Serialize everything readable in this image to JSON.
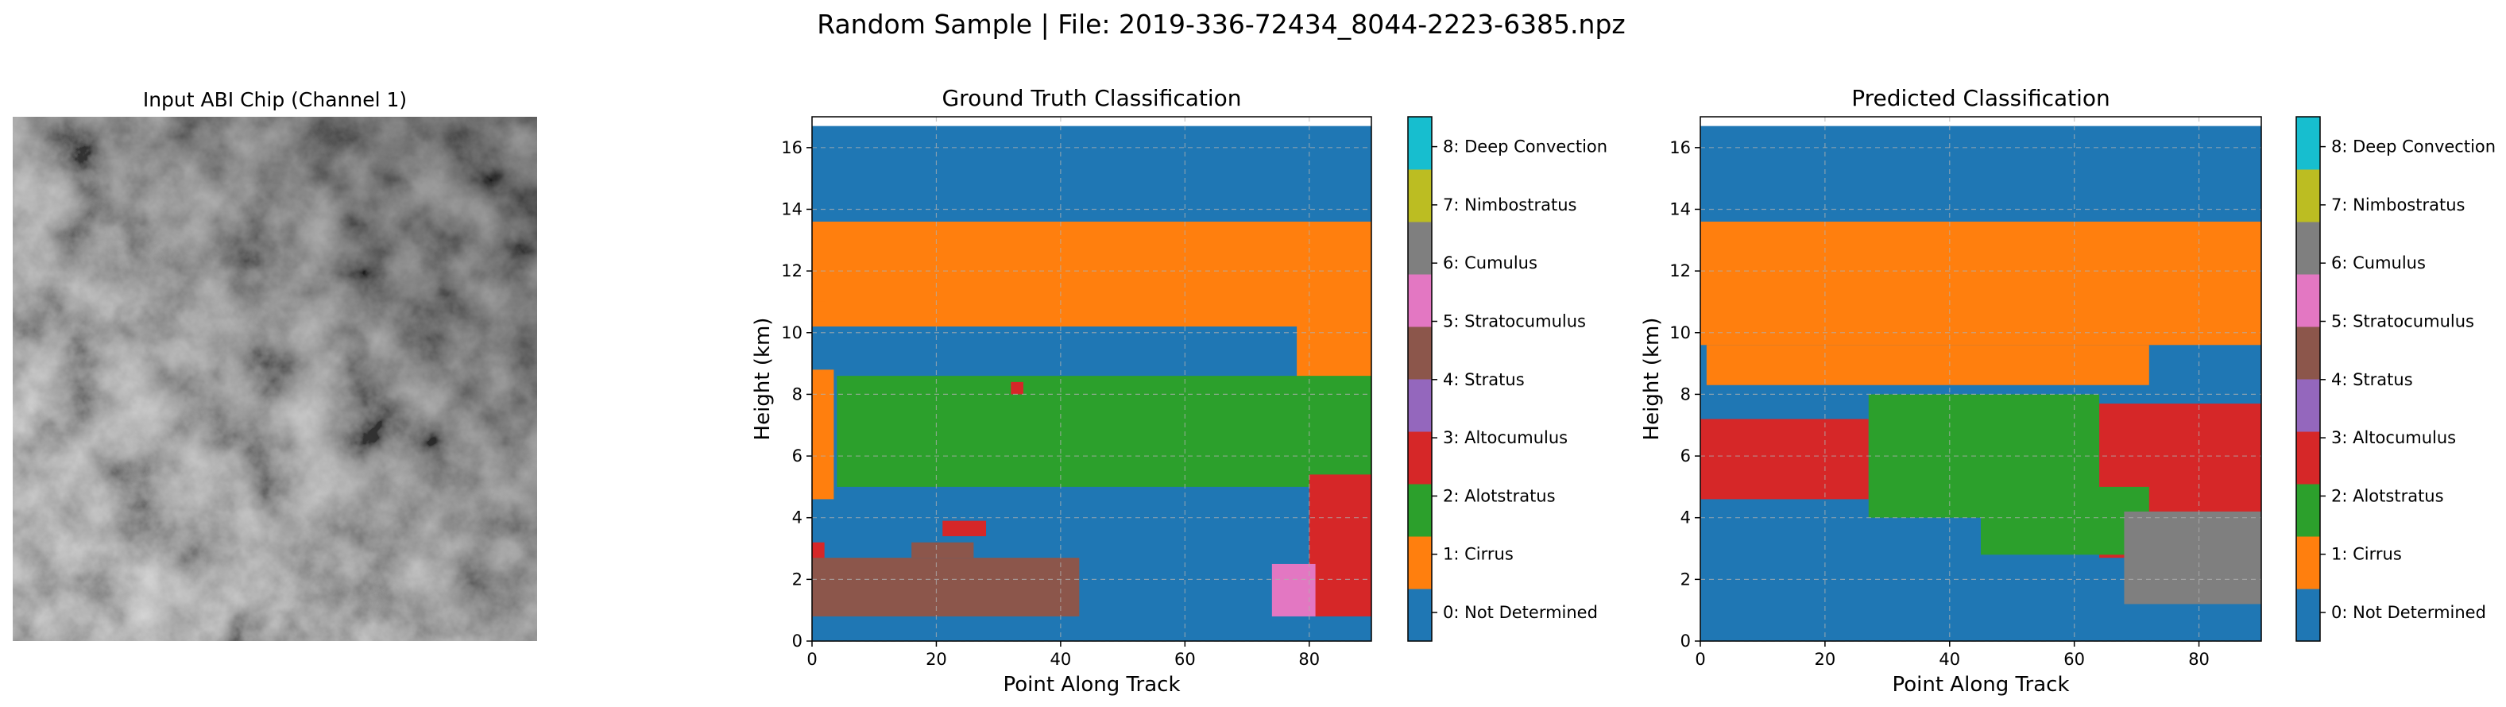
{
  "suptitle": "Random Sample | File: 2019-336-72434_8044-2223-6385.npz",
  "chart_data": [
    {
      "type": "image",
      "title": "Input ABI Chip (Channel 1)",
      "colormap": "gray"
    },
    {
      "type": "heatmap",
      "title": "Ground Truth Classification",
      "xlabel": "Point Along Track",
      "ylabel": "Height (km)",
      "xlim": [
        0,
        90
      ],
      "ylim": [
        0,
        17
      ],
      "xticks": [
        "0",
        "20",
        "40",
        "60",
        "80"
      ],
      "yticks": [
        "0",
        "2",
        "4",
        "6",
        "8",
        "10",
        "12",
        "14",
        "16"
      ],
      "grid": true,
      "background_class": 0,
      "regions": [
        {
          "class": 1,
          "x": [
            0,
            90
          ],
          "y": [
            10.2,
            13.6
          ]
        },
        {
          "class": 1,
          "x": [
            78,
            90
          ],
          "y": [
            7.2,
            10.2
          ]
        },
        {
          "class": 1,
          "x": [
            0,
            3.5
          ],
          "y": [
            4.6,
            8.8
          ]
        },
        {
          "class": 1,
          "x": [
            0,
            2
          ],
          "y": [
            11.0,
            11.6
          ]
        },
        {
          "class": 2,
          "x": [
            4,
            90
          ],
          "y": [
            5.0,
            8.6
          ]
        },
        {
          "class": 3,
          "x": [
            80,
            90
          ],
          "y": [
            0.8,
            5.4
          ]
        },
        {
          "class": 3,
          "x": [
            21,
            28
          ],
          "y": [
            3.4,
            3.9
          ]
        },
        {
          "class": 3,
          "x": [
            0,
            2
          ],
          "y": [
            2.0,
            3.2
          ]
        },
        {
          "class": 3,
          "x": [
            32,
            34
          ],
          "y": [
            8.0,
            8.4
          ]
        },
        {
          "class": 5,
          "x": [
            0,
            43
          ],
          "y": [
            0.8,
            2.7
          ]
        },
        {
          "class": 5,
          "x": [
            16,
            26
          ],
          "y": [
            2.7,
            3.2
          ]
        },
        {
          "class": 6,
          "x": [
            74,
            81
          ],
          "y": [
            0.8,
            2.5
          ]
        }
      ],
      "colorbar": {
        "labels": [
          "0: Not Determined",
          "1: Cirrus",
          "2: Alotstratus",
          "3: Altocumulus",
          "4: Stratus",
          "5: Stratocumulus",
          "6: Cumulus",
          "7: Nimbostratus",
          "8: Deep Convection"
        ],
        "colors": [
          "#1f77b4",
          "#ff7f0e",
          "#2ca02c",
          "#d62728",
          "#9467bd",
          "#8c564b",
          "#e377c2",
          "#7f7f7f",
          "#bcbd22",
          "#17becf"
        ]
      }
    },
    {
      "type": "heatmap",
      "title": "Predicted Classification",
      "xlabel": "Point Along Track",
      "ylabel": "Height (km)",
      "xlim": [
        0,
        90
      ],
      "ylim": [
        0,
        17
      ],
      "xticks": [
        "0",
        "20",
        "40",
        "60",
        "80"
      ],
      "yticks": [
        "0",
        "2",
        "4",
        "6",
        "8",
        "10",
        "12",
        "14",
        "16"
      ],
      "grid": true,
      "background_class": 0,
      "regions": [
        {
          "class": 1,
          "x": [
            0,
            90
          ],
          "y": [
            9.6,
            13.6
          ]
        },
        {
          "class": 1,
          "x": [
            1,
            72
          ],
          "y": [
            8.3,
            9.6
          ]
        },
        {
          "class": 3,
          "x": [
            0,
            27
          ],
          "y": [
            4.6,
            7.2
          ]
        },
        {
          "class": 3,
          "x": [
            64,
            90
          ],
          "y": [
            2.7,
            7.7
          ]
        },
        {
          "class": 2,
          "x": [
            27,
            64
          ],
          "y": [
            4.0,
            8.0
          ]
        },
        {
          "class": 2,
          "x": [
            45,
            72
          ],
          "y": [
            2.8,
            5.0
          ]
        },
        {
          "class": 7,
          "x": [
            68,
            90
          ],
          "y": [
            1.2,
            4.2
          ]
        }
      ],
      "colorbar": {
        "labels": [
          "0: Not Determined",
          "1: Cirrus",
          "2: Alotstratus",
          "3: Altocumulus",
          "4: Stratus",
          "5: Stratocumulus",
          "6: Cumulus",
          "7: Nimbostratus",
          "8: Deep Convection"
        ],
        "colors": [
          "#1f77b4",
          "#ff7f0e",
          "#2ca02c",
          "#d62728",
          "#9467bd",
          "#8c564b",
          "#e377c2",
          "#7f7f7f",
          "#bcbd22",
          "#17becf"
        ]
      }
    }
  ]
}
